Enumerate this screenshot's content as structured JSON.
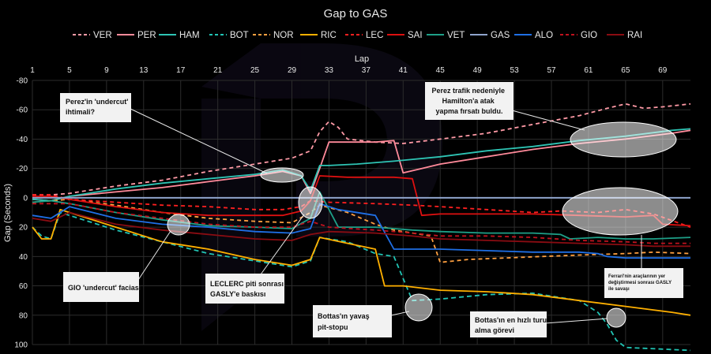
{
  "chart_data": {
    "type": "line",
    "title": "Gap to GAS",
    "xlabel": "Lap",
    "ylabel": "Gap (Seconds)",
    "xlim": [
      1,
      72
    ],
    "ylim": [
      -80,
      100
    ],
    "y_inverted": true,
    "x_ticks": [
      1,
      5,
      9,
      13,
      17,
      21,
      25,
      29,
      33,
      37,
      41,
      45,
      49,
      53,
      57,
      61,
      65,
      69
    ],
    "y_ticks": [
      -80,
      -60,
      -40,
      -20,
      0,
      20,
      40,
      60,
      80,
      100
    ],
    "grid": true,
    "legend_position": "top",
    "series": [
      {
        "name": "VER",
        "color": "#ff9aa6",
        "dash": "5,4",
        "points": [
          [
            1,
            -2
          ],
          [
            3,
            -2
          ],
          [
            5,
            -3
          ],
          [
            10,
            -8
          ],
          [
            15,
            -12
          ],
          [
            20,
            -18
          ],
          [
            25,
            -23
          ],
          [
            29,
            -27
          ],
          [
            31,
            -32
          ],
          [
            32,
            -45
          ],
          [
            33,
            -52
          ],
          [
            34,
            -48
          ],
          [
            35,
            -40
          ],
          [
            38,
            -38
          ],
          [
            41,
            -37
          ],
          [
            45,
            -40
          ],
          [
            50,
            -44
          ],
          [
            55,
            -50
          ],
          [
            60,
            -56
          ],
          [
            63,
            -61
          ],
          [
            65,
            -64
          ],
          [
            67,
            -61
          ],
          [
            69,
            -62
          ],
          [
            72,
            -64
          ]
        ]
      },
      {
        "name": "PER",
        "color": "#ff8a9a",
        "dash": "",
        "points": [
          [
            1,
            1
          ],
          [
            3,
            2
          ],
          [
            5,
            -1
          ],
          [
            10,
            -4
          ],
          [
            15,
            -7
          ],
          [
            20,
            -11
          ],
          [
            25,
            -15
          ],
          [
            28,
            -18
          ],
          [
            30,
            -15
          ],
          [
            31,
            -3
          ],
          [
            32,
            -20
          ],
          [
            33,
            -38
          ],
          [
            35,
            -38
          ],
          [
            38,
            -38
          ],
          [
            40,
            -39
          ],
          [
            41,
            -17
          ],
          [
            43,
            -20
          ],
          [
            45,
            -23
          ],
          [
            50,
            -28
          ],
          [
            55,
            -33
          ],
          [
            60,
            -37
          ],
          [
            65,
            -40
          ],
          [
            70,
            -44
          ],
          [
            72,
            -46
          ]
        ]
      },
      {
        "name": "HAM",
        "color": "#2ec4b4",
        "dash": "",
        "points": [
          [
            1,
            1
          ],
          [
            3,
            2
          ],
          [
            5,
            -1
          ],
          [
            10,
            -6
          ],
          [
            15,
            -10
          ],
          [
            20,
            -13
          ],
          [
            25,
            -16
          ],
          [
            28,
            -19
          ],
          [
            30,
            -15
          ],
          [
            31,
            -5
          ],
          [
            32,
            -22
          ],
          [
            33,
            -22
          ],
          [
            36,
            -23
          ],
          [
            40,
            -25
          ],
          [
            45,
            -28
          ],
          [
            50,
            -32
          ],
          [
            55,
            -35
          ],
          [
            60,
            -39
          ],
          [
            65,
            -42
          ],
          [
            70,
            -46
          ],
          [
            72,
            -47
          ]
        ]
      },
      {
        "name": "BOT",
        "color": "#21c4b4",
        "dash": "6,4",
        "points": [
          [
            1,
            20
          ],
          [
            2,
            26
          ],
          [
            3,
            28
          ],
          [
            4,
            10
          ],
          [
            5,
            12
          ],
          [
            10,
            22
          ],
          [
            15,
            30
          ],
          [
            20,
            38
          ],
          [
            25,
            43
          ],
          [
            29,
            47
          ],
          [
            31,
            43
          ],
          [
            32,
            27
          ],
          [
            35,
            30
          ],
          [
            38,
            38
          ],
          [
            40,
            40
          ],
          [
            42,
            70
          ],
          [
            45,
            69
          ],
          [
            50,
            66
          ],
          [
            55,
            65
          ],
          [
            60,
            70
          ],
          [
            62,
            78
          ],
          [
            63,
            86
          ],
          [
            64,
            97
          ],
          [
            65,
            102
          ],
          [
            72,
            104
          ]
        ]
      },
      {
        "name": "NOR",
        "color": "#ffa040",
        "dash": "5,4",
        "points": [
          [
            1,
            3
          ],
          [
            5,
            1
          ],
          [
            10,
            5
          ],
          [
            15,
            10
          ],
          [
            20,
            14
          ],
          [
            25,
            16
          ],
          [
            29,
            17
          ],
          [
            31,
            10
          ],
          [
            32,
            5
          ],
          [
            35,
            10
          ],
          [
            38,
            18
          ],
          [
            40,
            22
          ],
          [
            42,
            24
          ],
          [
            44,
            26
          ],
          [
            45,
            44
          ],
          [
            48,
            42
          ],
          [
            52,
            41
          ],
          [
            56,
            40
          ],
          [
            60,
            39
          ],
          [
            65,
            38
          ],
          [
            68,
            37
          ],
          [
            72,
            38
          ]
        ]
      },
      {
        "name": "RIC",
        "color": "#ffb000",
        "dash": "",
        "points": [
          [
            1,
            20
          ],
          [
            2,
            28
          ],
          [
            3,
            28
          ],
          [
            4,
            8
          ],
          [
            5,
            10
          ],
          [
            10,
            20
          ],
          [
            15,
            30
          ],
          [
            20,
            35
          ],
          [
            25,
            42
          ],
          [
            29,
            46
          ],
          [
            31,
            42
          ],
          [
            32,
            27
          ],
          [
            35,
            31
          ],
          [
            38,
            35
          ],
          [
            39,
            60
          ],
          [
            41,
            60
          ],
          [
            45,
            63
          ],
          [
            50,
            64
          ],
          [
            55,
            66
          ],
          [
            60,
            70
          ],
          [
            65,
            74
          ],
          [
            70,
            78
          ],
          [
            72,
            80
          ]
        ]
      },
      {
        "name": "LEC",
        "color": "#ff2020",
        "dash": "5,4",
        "points": [
          [
            1,
            -2
          ],
          [
            3,
            -2
          ],
          [
            5,
            1
          ],
          [
            10,
            3
          ],
          [
            15,
            5
          ],
          [
            20,
            6
          ],
          [
            25,
            8
          ],
          [
            28,
            8
          ],
          [
            30,
            6
          ],
          [
            31,
            2
          ],
          [
            33,
            3
          ],
          [
            38,
            4
          ],
          [
            42,
            5
          ],
          [
            45,
            6
          ],
          [
            50,
            8
          ],
          [
            55,
            10
          ],
          [
            58,
            9
          ],
          [
            62,
            10
          ],
          [
            65,
            8
          ],
          [
            68,
            11
          ],
          [
            72,
            20
          ]
        ]
      },
      {
        "name": "SAI",
        "color": "#dd1010",
        "dash": "",
        "points": [
          [
            1,
            -1
          ],
          [
            3,
            -1
          ],
          [
            5,
            1
          ],
          [
            10,
            6
          ],
          [
            15,
            10
          ],
          [
            20,
            12
          ],
          [
            25,
            12
          ],
          [
            28,
            12
          ],
          [
            30,
            9
          ],
          [
            31,
            2
          ],
          [
            32,
            -15
          ],
          [
            35,
            -14
          ],
          [
            40,
            -14
          ],
          [
            42,
            -13
          ],
          [
            43,
            12
          ],
          [
            45,
            11
          ],
          [
            50,
            11
          ],
          [
            55,
            11
          ],
          [
            60,
            12
          ],
          [
            65,
            13
          ],
          [
            68,
            12
          ],
          [
            69,
            18
          ],
          [
            72,
            19
          ]
        ]
      },
      {
        "name": "VET",
        "color": "#1ea088",
        "dash": "",
        "points": [
          [
            1,
            3
          ],
          [
            3,
            2
          ],
          [
            5,
            4
          ],
          [
            10,
            10
          ],
          [
            15,
            15
          ],
          [
            20,
            19
          ],
          [
            25,
            20
          ],
          [
            29,
            21
          ],
          [
            31,
            14
          ],
          [
            32,
            -4
          ],
          [
            34,
            20
          ],
          [
            38,
            20
          ],
          [
            42,
            22
          ],
          [
            45,
            23
          ],
          [
            50,
            24
          ],
          [
            55,
            24
          ],
          [
            58,
            25
          ],
          [
            59,
            28
          ],
          [
            62,
            27
          ],
          [
            65,
            28
          ],
          [
            68,
            28
          ],
          [
            72,
            27
          ]
        ]
      },
      {
        "name": "GAS",
        "color": "#8fa4cc",
        "dash": "",
        "points": [
          [
            1,
            0
          ],
          [
            72,
            0
          ]
        ]
      },
      {
        "name": "ALO",
        "color": "#1f6fe5",
        "dash": "",
        "points": [
          [
            1,
            12
          ],
          [
            3,
            14
          ],
          [
            5,
            6
          ],
          [
            10,
            14
          ],
          [
            15,
            18
          ],
          [
            20,
            20
          ],
          [
            25,
            23
          ],
          [
            29,
            24
          ],
          [
            31,
            21
          ],
          [
            32,
            4
          ],
          [
            34,
            8
          ],
          [
            38,
            12
          ],
          [
            40,
            35
          ],
          [
            45,
            35
          ],
          [
            50,
            36
          ],
          [
            55,
            37
          ],
          [
            60,
            37
          ],
          [
            62,
            38
          ],
          [
            63,
            40
          ],
          [
            65,
            41
          ],
          [
            68,
            41
          ],
          [
            72,
            41
          ]
        ]
      },
      {
        "name": "GIO",
        "color": "#c0121e",
        "dash": "5,4",
        "points": [
          [
            1,
            4
          ],
          [
            3,
            4
          ],
          [
            5,
            4
          ],
          [
            10,
            10
          ],
          [
            15,
            14
          ],
          [
            20,
            18
          ],
          [
            25,
            20
          ],
          [
            29,
            20
          ],
          [
            31,
            16
          ],
          [
            33,
            20
          ],
          [
            38,
            22
          ],
          [
            42,
            24
          ],
          [
            45,
            26
          ],
          [
            50,
            26
          ],
          [
            55,
            27
          ],
          [
            60,
            29
          ],
          [
            65,
            30
          ],
          [
            68,
            31
          ],
          [
            72,
            31
          ]
        ]
      },
      {
        "name": "RAI",
        "color": "#8a0c12",
        "dash": "",
        "points": [
          [
            1,
            14
          ],
          [
            3,
            16
          ],
          [
            5,
            10
          ],
          [
            10,
            18
          ],
          [
            15,
            22
          ],
          [
            20,
            25
          ],
          [
            25,
            28
          ],
          [
            29,
            29
          ],
          [
            31,
            25
          ],
          [
            33,
            23
          ],
          [
            38,
            24
          ],
          [
            42,
            26
          ],
          [
            45,
            28
          ],
          [
            50,
            29
          ],
          [
            55,
            30
          ],
          [
            60,
            31
          ],
          [
            65,
            32
          ],
          [
            68,
            33
          ],
          [
            72,
            33
          ]
        ]
      }
    ]
  },
  "annotations": [
    {
      "key": "a1",
      "lines": [
        "Perez'in 'undercut'",
        "ihtimali?"
      ]
    },
    {
      "key": "a2",
      "lines": [
        "Perez trafik nedeniyle",
        "Hamilton'a atak",
        "yapma fırsatı buldu."
      ]
    },
    {
      "key": "a3",
      "lines": [
        "GIO 'undercut' faciası"
      ]
    },
    {
      "key": "a4",
      "lines": [
        "LECLERC piti sonrası",
        "GASLY'e baskısı"
      ]
    },
    {
      "key": "a5",
      "lines": [
        "Bottas'ın yavaş",
        "pit-stopu"
      ]
    },
    {
      "key": "a6",
      "lines": [
        "Bottas'ın en hızlı turu",
        "alma görevi"
      ]
    },
    {
      "key": "a7",
      "lines": [
        "Ferrari'nin araçlarının yer",
        "değiştirmesi sonrası GASLY",
        "ile savaşı"
      ]
    }
  ]
}
